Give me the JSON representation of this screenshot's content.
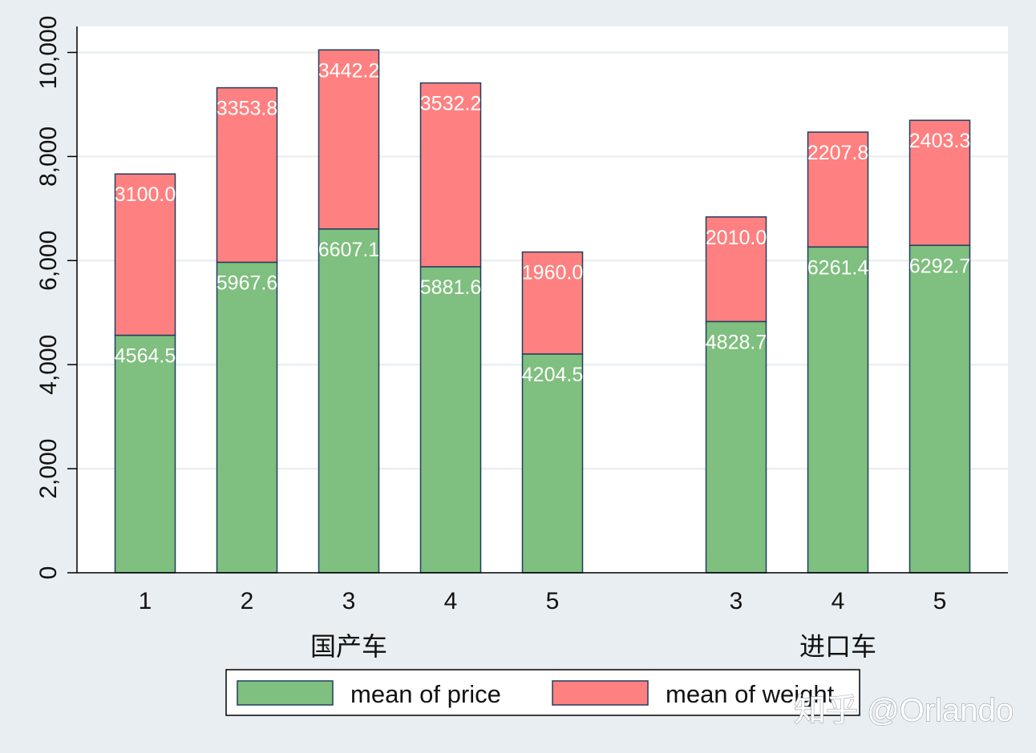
{
  "chart_data": {
    "type": "bar",
    "stacked": true,
    "groups": [
      {
        "label": "国产车",
        "categories": [
          "1",
          "2",
          "3",
          "4",
          "5"
        ]
      },
      {
        "label": "进口车",
        "categories": [
          "3",
          "4",
          "5"
        ]
      }
    ],
    "series": [
      {
        "name": "mean of price",
        "color": "#7fbf7f",
        "values": [
          4564.5,
          5967.6,
          6607.1,
          5881.6,
          4204.5,
          4828.7,
          6261.4,
          6292.7
        ],
        "labels": [
          "4564.5",
          "5967.6",
          "6607.1",
          "5881.6",
          "4204.5",
          "4828.7",
          "6261.4",
          "6292.7"
        ]
      },
      {
        "name": "mean of weight",
        "color": "#ff8080",
        "values": [
          3100.0,
          3353.8,
          3442.2,
          3532.2,
          1960.0,
          2010.0,
          2207.8,
          2403.3
        ],
        "labels": [
          "3100.0",
          "3353.8",
          "3442.2",
          "3532.2",
          "1960.0",
          "2010.0",
          "2207.8",
          "2403.3"
        ]
      }
    ],
    "ylim": [
      0,
      10500
    ],
    "yticks": [
      0,
      2000,
      4000,
      6000,
      8000,
      10000
    ],
    "ytick_labels": [
      "0",
      "2,000",
      "4,000",
      "6,000",
      "8,000",
      "10,000"
    ],
    "grid": true,
    "legend_position": "bottom",
    "edge_color": "#1f3f5f"
  },
  "watermark": "知乎 @Orlando"
}
